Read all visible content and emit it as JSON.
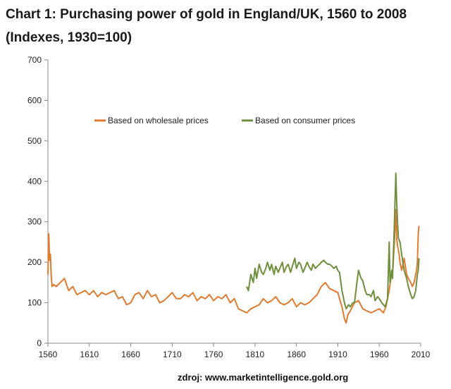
{
  "title": "Chart 1: Purchasing power of gold in England/UK, 1560 to 2008 (Indexes, 1930=100)",
  "source": "zdroj: www.marketintelligence.gold.org",
  "chart_data": {
    "type": "line",
    "title": "Chart 1: Purchasing power of gold in England/UK, 1560 to 2008 (Indexes, 1930=100)",
    "xlabel": "",
    "ylabel": "",
    "xlim": [
      1560,
      2010
    ],
    "ylim": [
      0,
      700
    ],
    "xticks": [
      1560,
      1610,
      1660,
      1710,
      1760,
      1810,
      1860,
      1910,
      1960,
      2010
    ],
    "yticks": [
      0,
      100,
      200,
      300,
      400,
      500,
      600,
      700
    ],
    "grid": false,
    "legend_position": "top-center",
    "series": [
      {
        "name": "Based on wholesale prices",
        "color": "#e07b30",
        "x": [
          1560,
          1561,
          1562,
          1563,
          1564,
          1565,
          1567,
          1570,
          1575,
          1580,
          1585,
          1590,
          1595,
          1600,
          1605,
          1610,
          1615,
          1620,
          1625,
          1630,
          1635,
          1640,
          1645,
          1650,
          1655,
          1660,
          1665,
          1670,
          1675,
          1680,
          1685,
          1690,
          1695,
          1700,
          1705,
          1710,
          1715,
          1720,
          1725,
          1730,
          1735,
          1740,
          1745,
          1750,
          1755,
          1760,
          1765,
          1770,
          1775,
          1780,
          1785,
          1790,
          1795,
          1800,
          1805,
          1810,
          1815,
          1820,
          1825,
          1830,
          1835,
          1840,
          1845,
          1850,
          1855,
          1860,
          1865,
          1870,
          1875,
          1880,
          1885,
          1890,
          1895,
          1900,
          1905,
          1910,
          1912,
          1915,
          1918,
          1920,
          1922,
          1925,
          1930,
          1935,
          1940,
          1945,
          1950,
          1955,
          1960,
          1965,
          1968,
          1970,
          1972,
          1974,
          1975,
          1976,
          1978,
          1980,
          1981,
          1982,
          1984,
          1985,
          1987,
          1990,
          1993,
          1995,
          1998,
          2000,
          2002,
          2004,
          2005,
          2006,
          2007,
          2008
        ],
        "values": [
          170,
          270,
          205,
          220,
          165,
          140,
          145,
          140,
          150,
          160,
          130,
          140,
          120,
          125,
          130,
          120,
          130,
          115,
          125,
          120,
          125,
          130,
          110,
          115,
          95,
          100,
          120,
          125,
          110,
          130,
          115,
          120,
          100,
          105,
          115,
          125,
          110,
          110,
          120,
          115,
          125,
          105,
          115,
          110,
          120,
          105,
          115,
          110,
          120,
          100,
          110,
          85,
          80,
          75,
          85,
          90,
          95,
          110,
          100,
          105,
          115,
          100,
          95,
          100,
          110,
          90,
          100,
          95,
          100,
          110,
          120,
          140,
          150,
          135,
          130,
          125,
          110,
          90,
          60,
          50,
          70,
          80,
          100,
          105,
          85,
          80,
          75,
          80,
          85,
          75,
          90,
          110,
          130,
          160,
          180,
          170,
          240,
          330,
          260,
          240,
          220,
          200,
          180,
          210,
          170,
          160,
          150,
          140,
          150,
          170,
          180,
          200,
          270,
          290
        ]
      },
      {
        "name": "Based on consumer prices",
        "color": "#6f8f3c",
        "x": [
          1800,
          1802,
          1805,
          1808,
          1810,
          1812,
          1815,
          1818,
          1820,
          1823,
          1825,
          1828,
          1830,
          1833,
          1835,
          1838,
          1840,
          1843,
          1845,
          1848,
          1850,
          1853,
          1855,
          1858,
          1860,
          1863,
          1865,
          1868,
          1870,
          1873,
          1875,
          1878,
          1880,
          1883,
          1885,
          1888,
          1890,
          1893,
          1895,
          1898,
          1900,
          1903,
          1905,
          1908,
          1910,
          1912,
          1915,
          1918,
          1920,
          1923,
          1925,
          1928,
          1930,
          1933,
          1935,
          1938,
          1940,
          1943,
          1945,
          1948,
          1950,
          1953,
          1955,
          1958,
          1960,
          1963,
          1965,
          1967,
          1970,
          1972,
          1973,
          1975,
          1976,
          1978,
          1980,
          1981,
          1982,
          1983,
          1985,
          1987,
          1990,
          1993,
          1995,
          1998,
          2000,
          2002,
          2004,
          2005,
          2006,
          2007,
          2008
        ],
        "values": [
          140,
          130,
          170,
          150,
          185,
          160,
          195,
          175,
          170,
          185,
          200,
          180,
          195,
          170,
          190,
          175,
          185,
          200,
          175,
          190,
          195,
          175,
          190,
          210,
          185,
          200,
          195,
          175,
          185,
          200,
          190,
          180,
          195,
          185,
          190,
          195,
          200,
          205,
          200,
          195,
          195,
          190,
          185,
          190,
          180,
          175,
          130,
          100,
          85,
          95,
          90,
          100,
          100,
          150,
          180,
          160,
          155,
          130,
          120,
          120,
          115,
          130,
          105,
          115,
          110,
          100,
          95,
          90,
          110,
          250,
          150,
          180,
          160,
          280,
          420,
          350,
          300,
          260,
          250,
          220,
          180,
          160,
          140,
          120,
          110,
          115,
          130,
          150,
          170,
          180,
          210
        ]
      }
    ]
  }
}
